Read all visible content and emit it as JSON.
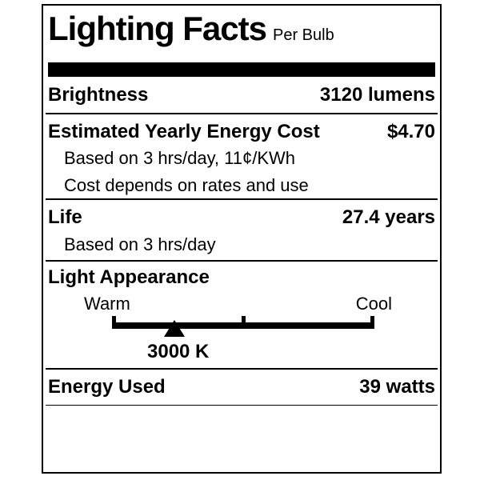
{
  "label": {
    "title": "Lighting Facts",
    "subtitle": "Per Bulb",
    "brightness": {
      "name": "Brightness",
      "value": "3120 lumens"
    },
    "energy_cost": {
      "name": "Estimated Yearly Energy Cost",
      "value": "$4.70",
      "notes": [
        "Based on 3 hrs/day, 11¢/KWh",
        "Cost depends on rates and use"
      ]
    },
    "life": {
      "name": "Life",
      "value": "27.4 years",
      "notes": [
        "Based on 3 hrs/day"
      ]
    },
    "light_appearance": {
      "name": "Light Appearance",
      "warm_label": "Warm",
      "cool_label": "Cool",
      "kelvin_value": "3000 K",
      "marker_position_pct": 23.8
    },
    "energy_used": {
      "name": "Energy Used",
      "value": "39 watts"
    },
    "colors": {
      "ink": "#000000",
      "paper": "#ffffff"
    }
  }
}
